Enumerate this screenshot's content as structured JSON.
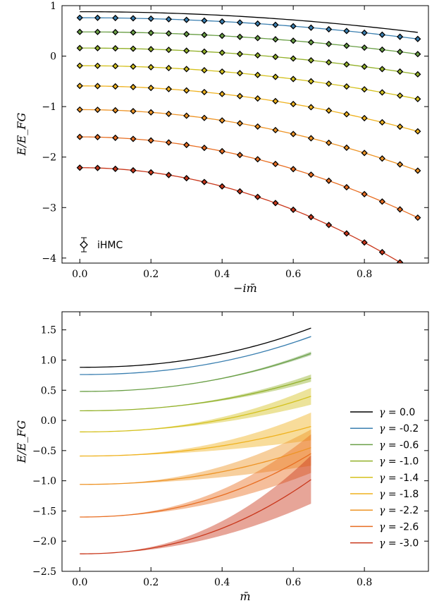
{
  "chart_data": [
    {
      "type": "line",
      "xlabel": "−im̄",
      "ylabel": "E/E_FG",
      "xlim": [
        -0.05,
        0.98
      ],
      "ylim": [
        -4.1,
        1.0
      ],
      "xticks": [
        0.0,
        0.2,
        0.4,
        0.6,
        0.8
      ],
      "xtick_labels": [
        "0.0",
        "0.2",
        "0.4",
        "0.6",
        "0.8"
      ],
      "yticks": [
        -4,
        -3,
        -2,
        -1,
        0,
        1
      ],
      "ytick_labels": [
        "−4",
        "−3",
        "−2",
        "−1",
        "0",
        "1"
      ],
      "grid": false,
      "legend": {
        "position": "bottom-left",
        "label": "iHMC"
      },
      "x_range": [
        0.0,
        0.95
      ],
      "marker_x": [
        0.0,
        0.05,
        0.1,
        0.15,
        0.2,
        0.25,
        0.3,
        0.35,
        0.4,
        0.45,
        0.5,
        0.55,
        0.6,
        0.65,
        0.7,
        0.75,
        0.8,
        0.85,
        0.9,
        0.95
      ],
      "series": [
        {
          "gamma": 0.0,
          "color": "#000000",
          "y0": 0.88,
          "y_end": 0.47,
          "markers": false
        },
        {
          "gamma": -0.2,
          "color": "#3a7fb0",
          "y0": 0.76,
          "y_end": 0.34,
          "markers": true
        },
        {
          "gamma": -0.6,
          "color": "#6a9f46",
          "y0": 0.48,
          "y_end": 0.04,
          "markers": true
        },
        {
          "gamma": -1.0,
          "color": "#93b12a",
          "y0": 0.16,
          "y_end": -0.36,
          "markers": true
        },
        {
          "gamma": -1.4,
          "color": "#d4c11e",
          "y0": -0.19,
          "y_end": -0.85,
          "markers": true
        },
        {
          "gamma": -1.8,
          "color": "#efb21f",
          "y0": -0.59,
          "y_end": -1.49,
          "markers": true
        },
        {
          "gamma": -2.2,
          "color": "#ee9426",
          "y0": -1.06,
          "y_end": -2.27,
          "markers": true
        },
        {
          "gamma": -2.6,
          "color": "#e86e22",
          "y0": -1.6,
          "y_end": -3.2,
          "markers": true
        },
        {
          "gamma": -3.0,
          "color": "#c9371b",
          "y0": -2.21,
          "y_end": -4.3,
          "markers": true
        }
      ]
    },
    {
      "type": "line",
      "xlabel": "m̄",
      "ylabel": "E/E_FG",
      "xlim": [
        -0.05,
        0.98
      ],
      "ylim": [
        -2.5,
        1.8
      ],
      "xticks": [
        0.0,
        0.2,
        0.4,
        0.6,
        0.8
      ],
      "xtick_labels": [
        "0.0",
        "0.2",
        "0.4",
        "0.6",
        "0.8"
      ],
      "yticks": [
        -2.5,
        -2.0,
        -1.5,
        -1.0,
        -0.5,
        0.0,
        0.5,
        1.0,
        1.5
      ],
      "ytick_labels": [
        "−2.5",
        "−2.0",
        "−1.5",
        "−1.0",
        "−0.5",
        "0.0",
        "0.5",
        "1.0",
        "1.5"
      ],
      "grid": false,
      "legend": {
        "position": "right"
      },
      "x_range": [
        0.0,
        0.65
      ],
      "series": [
        {
          "name": "γ = 0.0",
          "gamma_label": "0.0",
          "color": "#000000",
          "y0": 0.88,
          "y_end": 1.53,
          "band_end": 0.0
        },
        {
          "name": "γ = -0.2",
          "gamma_label": "-0.2",
          "color": "#3a7fb0",
          "y0": 0.76,
          "y_end": 1.39,
          "band_end": 0.01
        },
        {
          "name": "γ = -0.6",
          "gamma_label": "-0.6",
          "color": "#6a9f46",
          "y0": 0.48,
          "y_end": 1.11,
          "band_end": 0.03
        },
        {
          "name": "γ = -1.0",
          "gamma_label": "-1.0",
          "color": "#93b12a",
          "y0": 0.16,
          "y_end": 0.7,
          "band_end": 0.06
        },
        {
          "name": "γ = -1.4",
          "gamma_label": "-1.4",
          "color": "#d4c11e",
          "y0": -0.19,
          "y_end": 0.4,
          "band_end": 0.14
        },
        {
          "name": "γ = -1.8",
          "gamma_label": "-1.8",
          "color": "#efb21f",
          "y0": -0.59,
          "y_end": -0.1,
          "band_end": 0.23
        },
        {
          "name": "γ = -2.2",
          "gamma_label": "-2.2",
          "color": "#ee9426",
          "y0": -1.06,
          "y_end": -0.45,
          "band_end": 0.3
        },
        {
          "name": "γ = -2.6",
          "gamma_label": "-2.6",
          "color": "#e86e22",
          "y0": -1.6,
          "y_end": -0.55,
          "band_end": 0.32
        },
        {
          "name": "γ = -3.0",
          "gamma_label": "-3.0",
          "color": "#c9371b",
          "y0": -2.21,
          "y_end": -0.98,
          "band_end": 0.4
        }
      ]
    }
  ]
}
